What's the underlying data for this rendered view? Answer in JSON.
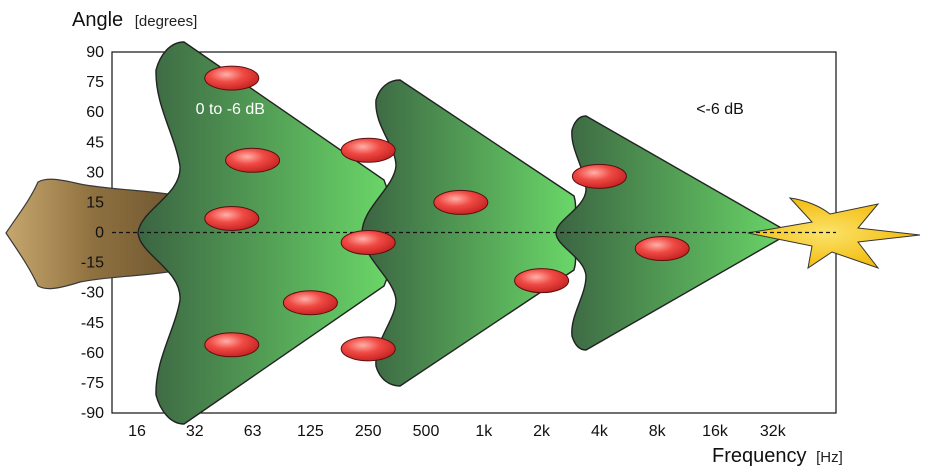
{
  "chart_data": {
    "type": "area",
    "ylabel": "Angle",
    "ylabel_unit": "[degrees]",
    "xlabel": "Frequency",
    "xlabel_unit": "[Hz]",
    "x_categories": [
      "16",
      "32",
      "63",
      "125",
      "250",
      "500",
      "1k",
      "2k",
      "4k",
      "8k",
      "16k",
      "32k"
    ],
    "y_ticks": [
      90,
      75,
      60,
      45,
      30,
      15,
      0,
      -15,
      -30,
      -45,
      -60,
      -75,
      -90
    ],
    "ylim": [
      -90,
      90
    ],
    "reference_line": {
      "y": 0,
      "style": "dashed"
    },
    "annotations": [
      {
        "text": "0 to -6 dB",
        "x": "63",
        "y": 60,
        "theme": "light"
      },
      {
        "text": "<-6 dB",
        "x": "8k",
        "y": 60,
        "theme": "dark"
      }
    ],
    "ornaments": [
      {
        "x": "32",
        "y": 77
      },
      {
        "x": "32",
        "y": 7
      },
      {
        "x": "32",
        "y": -56
      },
      {
        "x": "63",
        "y": 36
      },
      {
        "x": "125",
        "y": -35
      },
      {
        "x": "250",
        "y": 41
      },
      {
        "x": "250",
        "y": -5
      },
      {
        "x": "250",
        "y": -58
      },
      {
        "x": "1k",
        "y": 15
      },
      {
        "x": "2k",
        "y": -24
      },
      {
        "x": "4k",
        "y": 28
      },
      {
        "x": "8k",
        "y": -8
      }
    ],
    "colors": {
      "foliage_dark": "#3d6b45",
      "foliage_light": "#6cd469",
      "trunk": "#a6854f",
      "ornament": "#e63b3b",
      "star": "#f5c518"
    }
  }
}
